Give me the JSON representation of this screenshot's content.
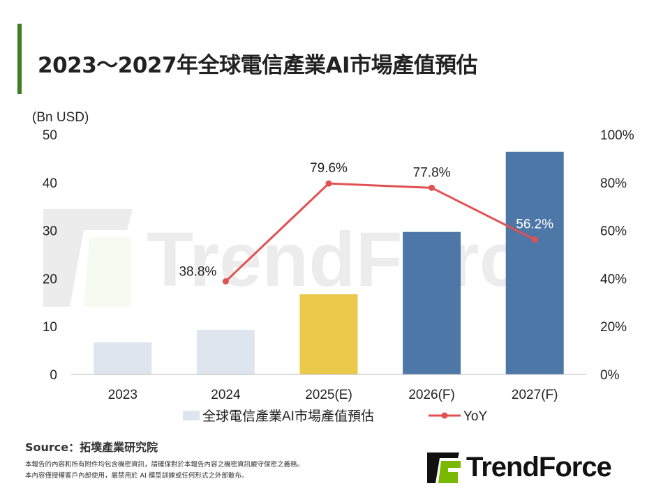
{
  "title": "2023～2027年全球電信產業AI市場產值預估",
  "chart_data": {
    "type": "bar+line",
    "categories": [
      "2023",
      "2024",
      "2025(E)",
      "2026(F)",
      "2027(F)"
    ],
    "y_left_unit": "(Bn USD)",
    "y_left_lim": [
      0,
      50
    ],
    "y_left_ticks": [
      "0",
      "10",
      "20",
      "30",
      "40",
      "50"
    ],
    "y_right_lim": [
      0,
      100
    ],
    "y_right_ticks": [
      "0%",
      "20%",
      "40%",
      "60%",
      "80%",
      "100%"
    ],
    "grid": false,
    "legend_position": "bottom",
    "series": [
      {
        "name": "全球電信產業AI市場產值預估",
        "type": "bar",
        "values": [
          6.7,
          9.3,
          16.7,
          29.7,
          46.4
        ],
        "colors": [
          "#dfe5ee",
          "#dfe5ee",
          "#ecc94b",
          "#4c77a6",
          "#4c77a6"
        ]
      },
      {
        "name": "YoY",
        "type": "line",
        "axis": "right",
        "values": [
          null,
          38.8,
          79.6,
          77.8,
          56.2
        ],
        "labels": [
          "",
          "38.8%",
          "79.6%",
          "77.8%",
          "56.2%"
        ],
        "color": "#e05252"
      }
    ]
  },
  "watermark": "TrendForce",
  "source": "Source：拓墣產業研究院",
  "notes": [
    "本報告的內容和所有附件均包含機密資訊，請確保對於本報告內容之機密資訊嚴守保密之義務。",
    "本內容僅授權客戶內部使用，嚴禁用於 AI 模型訓練或任何形式之外部散布。"
  ],
  "logo_text": "TrendForce",
  "colors": {
    "accent": "#3e7d22",
    "logo_green": "#7ab800"
  }
}
